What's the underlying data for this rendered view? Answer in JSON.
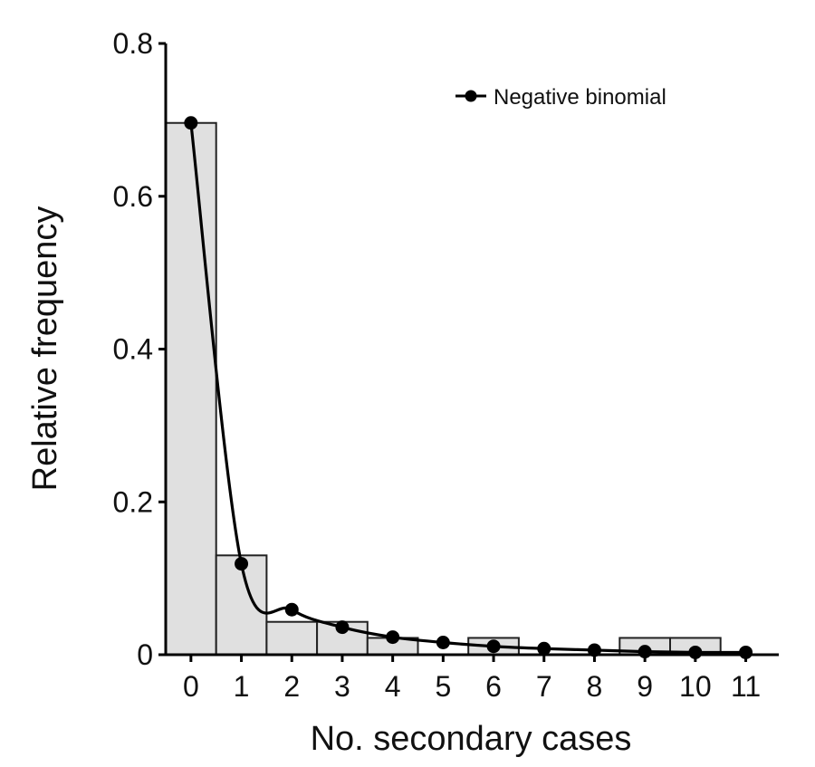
{
  "chart_data": {
    "type": "bar",
    "x": [
      0,
      1,
      2,
      3,
      4,
      5,
      6,
      7,
      8,
      9,
      10,
      11
    ],
    "x_tick_labels": [
      "0",
      "1",
      "2",
      "3",
      "4",
      "5",
      "6",
      "7",
      "8",
      "9",
      "10",
      "11"
    ],
    "y_tick_values": [
      0,
      0.2,
      0.4,
      0.6,
      0.8
    ],
    "y_tick_labels": [
      "0",
      "0.2",
      "0.4",
      "0.6",
      "0.8"
    ],
    "xlabel": "No. secondary cases",
    "ylabel": "Relative frequency",
    "xlim": [
      -0.5,
      11.5
    ],
    "ylim": [
      0,
      0.8
    ],
    "grid": false,
    "legend_position": "top-right",
    "bar_fill": "#e0e0e0",
    "bar_stroke": "#222222",
    "series": [
      {
        "kind": "bar",
        "values": [
          0.696,
          0.13,
          0.043,
          0.043,
          0.022,
          0,
          0.022,
          0,
          0,
          0.022,
          0.022,
          0
        ]
      },
      {
        "kind": "line-with-markers",
        "name": "Negative binomial",
        "values": [
          0.696,
          0.119,
          0.059,
          0.036,
          0.023,
          0.016,
          0.011,
          0.008,
          0.006,
          0.004,
          0.003,
          0.003
        ],
        "color": "#000000"
      }
    ]
  }
}
